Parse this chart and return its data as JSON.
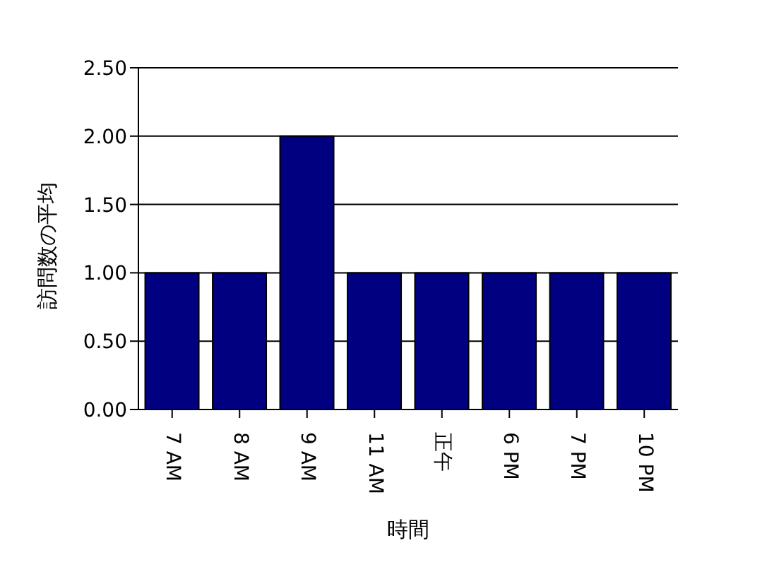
{
  "chart_data": {
    "type": "bar",
    "xlabel": "時間",
    "ylabel": "訪問数の平均",
    "categories": [
      "7 AM",
      "8 AM",
      "9 AM",
      "11 AM",
      "正午",
      "6 PM",
      "7 PM",
      "10 PM"
    ],
    "values": [
      1,
      1,
      2,
      1,
      1,
      1,
      1,
      1
    ],
    "color": "#000080",
    "ylim": [
      0,
      2.5
    ],
    "yticks": [
      {
        "value": 0,
        "label": "0.00"
      },
      {
        "value": 0.5,
        "label": "0.50"
      },
      {
        "value": 1,
        "label": "1.00"
      },
      {
        "value": 1.5,
        "label": "1.50"
      },
      {
        "value": 2,
        "label": "2.00"
      },
      {
        "value": 2.5,
        "label": "2.50"
      }
    ],
    "grid": "y",
    "legend": false
  }
}
